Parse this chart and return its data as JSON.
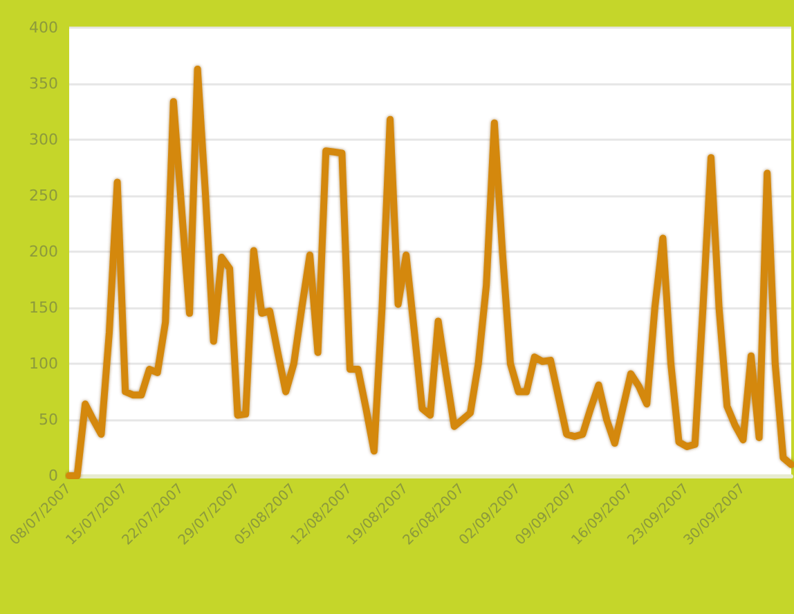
{
  "chart_data": {
    "type": "line",
    "x": [
      "2007-07-08",
      "2007-07-09",
      "2007-07-10",
      "2007-07-11",
      "2007-07-12",
      "2007-07-13",
      "2007-07-14",
      "2007-07-15",
      "2007-07-16",
      "2007-07-17",
      "2007-07-18",
      "2007-07-19",
      "2007-07-20",
      "2007-07-21",
      "2007-07-22",
      "2007-07-23",
      "2007-07-24",
      "2007-07-25",
      "2007-07-26",
      "2007-07-27",
      "2007-07-28",
      "2007-07-29",
      "2007-07-30",
      "2007-07-31",
      "2007-08-01",
      "2007-08-02",
      "2007-08-03",
      "2007-08-04",
      "2007-08-05",
      "2007-08-06",
      "2007-08-07",
      "2007-08-08",
      "2007-08-09",
      "2007-08-10",
      "2007-08-11",
      "2007-08-12",
      "2007-08-13",
      "2007-08-14",
      "2007-08-15",
      "2007-08-16",
      "2007-08-17",
      "2007-08-18",
      "2007-08-19",
      "2007-08-20",
      "2007-08-21",
      "2007-08-22",
      "2007-08-23",
      "2007-08-24",
      "2007-08-25",
      "2007-08-26",
      "2007-08-27",
      "2007-08-28",
      "2007-08-29",
      "2007-08-30",
      "2007-08-31",
      "2007-09-01",
      "2007-09-02",
      "2007-09-03",
      "2007-09-04",
      "2007-09-05",
      "2007-09-06",
      "2007-09-07",
      "2007-09-08",
      "2007-09-09",
      "2007-09-10",
      "2007-09-11",
      "2007-09-12",
      "2007-09-13",
      "2007-09-14",
      "2007-09-15",
      "2007-09-16",
      "2007-09-17",
      "2007-09-18",
      "2007-09-19",
      "2007-09-20",
      "2007-09-21",
      "2007-09-22",
      "2007-09-23",
      "2007-09-24",
      "2007-09-25",
      "2007-09-26",
      "2007-09-27",
      "2007-09-28",
      "2007-09-29",
      "2007-09-30",
      "2007-10-01",
      "2007-10-02",
      "2007-10-03",
      "2007-10-04",
      "2007-10-05",
      "2007-10-06"
    ],
    "series": [
      {
        "color": "#d4880c",
        "values": [
          0,
          0,
          64,
          50,
          37,
          128,
          262,
          75,
          72,
          72,
          95,
          92,
          137,
          334,
          240,
          145,
          363,
          250,
          120,
          195,
          185,
          54,
          55,
          201,
          145,
          147,
          110,
          75,
          100,
          150,
          197,
          110,
          290,
          289,
          288,
          95,
          95,
          60,
          22,
          150,
          318,
          153,
          197,
          130,
          60,
          54,
          138,
          90,
          44,
          50,
          56,
          100,
          170,
          315,
          200,
          100,
          75,
          75,
          106,
          102,
          103,
          70,
          37,
          35,
          37,
          60,
          81,
          50,
          29,
          60,
          91,
          80,
          64,
          150,
          212,
          100,
          30,
          26,
          28,
          150,
          284,
          150,
          62,
          45,
          32,
          107,
          34,
          270,
          100,
          16,
          10
        ]
      }
    ],
    "xlim": [
      "2007-07-08",
      "2007-10-06"
    ],
    "xticks": [
      {
        "value": "2007-07-08",
        "label": "08/07/2007"
      },
      {
        "value": "2007-07-15",
        "label": "15/07/2007"
      },
      {
        "value": "2007-07-22",
        "label": "22/07/2007"
      },
      {
        "value": "2007-07-29",
        "label": "29/07/2007"
      },
      {
        "value": "2007-08-05",
        "label": "05/08/2007"
      },
      {
        "value": "2007-08-12",
        "label": "12/08/2007"
      },
      {
        "value": "2007-08-19",
        "label": "19/08/2007"
      },
      {
        "value": "2007-08-26",
        "label": "26/08/2007"
      },
      {
        "value": "2007-09-02",
        "label": "02/09/2007"
      },
      {
        "value": "2007-09-09",
        "label": "09/09/2007"
      },
      {
        "value": "2007-09-16",
        "label": "16/09/2007"
      },
      {
        "value": "2007-09-23",
        "label": "23/09/2007"
      },
      {
        "value": "2007-09-30",
        "label": "30/09/2007"
      }
    ],
    "ylim": [
      0,
      400
    ],
    "yticks": [
      0,
      50,
      100,
      150,
      200,
      250,
      300,
      350,
      400
    ],
    "grid": "y",
    "marker": "none",
    "line_style": "solid"
  }
}
